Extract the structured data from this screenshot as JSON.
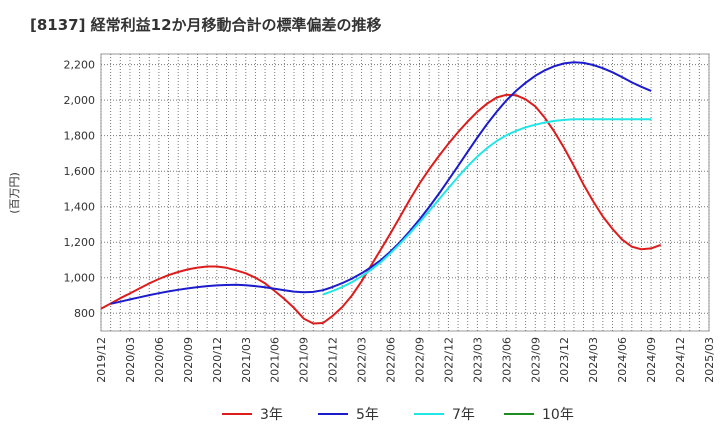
{
  "chart_data": {
    "type": "line",
    "title": "[8137]  経常利益12か月移動合計の標準偏差の推移",
    "ylabel": "(百万円)",
    "xlabel": "",
    "ylim": [
      700,
      2260
    ],
    "yticks": [
      800,
      1000,
      1200,
      1400,
      1600,
      1800,
      2000,
      2200
    ],
    "ytick_labels": [
      "800",
      "1,000",
      "1,200",
      "1,400",
      "1,600",
      "1,800",
      "2,000",
      "2,200"
    ],
    "xlim": [
      "2019-12",
      "2025-03"
    ],
    "xticks": [
      "2019/12",
      "2020/03",
      "2020/06",
      "2020/09",
      "2020/12",
      "2021/03",
      "2021/06",
      "2021/09",
      "2021/12",
      "2022/03",
      "2022/06",
      "2022/09",
      "2022/12",
      "2023/03",
      "2023/06",
      "2023/09",
      "2023/12",
      "2024/03",
      "2024/06",
      "2024/09",
      "2024/12",
      "2025/03"
    ],
    "grid": true,
    "legend_position": "bottom",
    "series": [
      {
        "name": "3年",
        "color": "#dd1c1c",
        "points": [
          [
            "2019-12",
            825
          ],
          [
            "2020-01",
            855
          ],
          [
            "2020-02",
            885
          ],
          [
            "2020-03",
            912
          ],
          [
            "2020-04",
            940
          ],
          [
            "2020-05",
            968
          ],
          [
            "2020-06",
            993
          ],
          [
            "2020-07",
            1015
          ],
          [
            "2020-08",
            1032
          ],
          [
            "2020-09",
            1047
          ],
          [
            "2020-10",
            1057
          ],
          [
            "2020-11",
            1063
          ],
          [
            "2020-12",
            1063
          ],
          [
            "2021-01",
            1056
          ],
          [
            "2021-02",
            1042
          ],
          [
            "2021-03",
            1025
          ],
          [
            "2021-04",
            1000
          ],
          [
            "2021-05",
            968
          ],
          [
            "2021-06",
            925
          ],
          [
            "2021-07",
            880
          ],
          [
            "2021-08",
            830
          ],
          [
            "2021-09",
            770
          ],
          [
            "2021-10",
            742
          ],
          [
            "2021-11",
            745
          ],
          [
            "2021-12",
            785
          ],
          [
            "2022-01",
            835
          ],
          [
            "2022-02",
            900
          ],
          [
            "2022-03",
            980
          ],
          [
            "2022-04",
            1070
          ],
          [
            "2022-05",
            1160
          ],
          [
            "2022-06",
            1250
          ],
          [
            "2022-07",
            1345
          ],
          [
            "2022-08",
            1440
          ],
          [
            "2022-09",
            1530
          ],
          [
            "2022-10",
            1610
          ],
          [
            "2022-11",
            1685
          ],
          [
            "2022-12",
            1755
          ],
          [
            "2023-01",
            1820
          ],
          [
            "2023-02",
            1880
          ],
          [
            "2023-03",
            1935
          ],
          [
            "2023-04",
            1980
          ],
          [
            "2023-05",
            2015
          ],
          [
            "2023-06",
            2030
          ],
          [
            "2023-07",
            2028
          ],
          [
            "2023-08",
            2005
          ],
          [
            "2023-09",
            1965
          ],
          [
            "2023-10",
            1900
          ],
          [
            "2023-11",
            1820
          ],
          [
            "2023-12",
            1730
          ],
          [
            "2024-01",
            1630
          ],
          [
            "2024-02",
            1525
          ],
          [
            "2024-03",
            1430
          ],
          [
            "2024-04",
            1345
          ],
          [
            "2024-05",
            1275
          ],
          [
            "2024-06",
            1215
          ],
          [
            "2024-07",
            1175
          ],
          [
            "2024-08",
            1160
          ],
          [
            "2024-09",
            1165
          ],
          [
            "2024-10",
            1185
          ]
        ]
      },
      {
        "name": "5年",
        "color": "#1c1ccc",
        "points": [
          [
            "2020-01",
            853
          ],
          [
            "2020-02",
            865
          ],
          [
            "2020-03",
            878
          ],
          [
            "2020-04",
            890
          ],
          [
            "2020-05",
            902
          ],
          [
            "2020-06",
            913
          ],
          [
            "2020-07",
            923
          ],
          [
            "2020-08",
            932
          ],
          [
            "2020-09",
            940
          ],
          [
            "2020-10",
            947
          ],
          [
            "2020-11",
            953
          ],
          [
            "2020-12",
            957
          ],
          [
            "2021-01",
            959
          ],
          [
            "2021-02",
            960
          ],
          [
            "2021-03",
            958
          ],
          [
            "2021-04",
            953
          ],
          [
            "2021-05",
            946
          ],
          [
            "2021-06",
            938
          ],
          [
            "2021-07",
            930
          ],
          [
            "2021-08",
            922
          ],
          [
            "2021-09",
            918
          ],
          [
            "2021-10",
            920
          ],
          [
            "2021-11",
            930
          ],
          [
            "2021-12",
            948
          ],
          [
            "2022-01",
            970
          ],
          [
            "2022-02",
            995
          ],
          [
            "2022-03",
            1025
          ],
          [
            "2022-04",
            1060
          ],
          [
            "2022-05",
            1100
          ],
          [
            "2022-06",
            1148
          ],
          [
            "2022-07",
            1202
          ],
          [
            "2022-08",
            1262
          ],
          [
            "2022-09",
            1328
          ],
          [
            "2022-10",
            1398
          ],
          [
            "2022-11",
            1472
          ],
          [
            "2022-12",
            1550
          ],
          [
            "2023-01",
            1630
          ],
          [
            "2023-02",
            1710
          ],
          [
            "2023-03",
            1790
          ],
          [
            "2023-04",
            1865
          ],
          [
            "2023-05",
            1935
          ],
          [
            "2023-06",
            1998
          ],
          [
            "2023-07",
            2052
          ],
          [
            "2023-08",
            2098
          ],
          [
            "2023-09",
            2137
          ],
          [
            "2023-10",
            2168
          ],
          [
            "2023-11",
            2192
          ],
          [
            "2023-12",
            2207
          ],
          [
            "2024-01",
            2213
          ],
          [
            "2024-02",
            2210
          ],
          [
            "2024-03",
            2198
          ],
          [
            "2024-04",
            2180
          ],
          [
            "2024-05",
            2157
          ],
          [
            "2024-06",
            2130
          ],
          [
            "2024-07",
            2100
          ],
          [
            "2024-08",
            2075
          ],
          [
            "2024-09",
            2052
          ]
        ]
      },
      {
        "name": "7年",
        "color": "#22e6e6",
        "points": [
          [
            "2021-11",
            905
          ],
          [
            "2021-12",
            925
          ],
          [
            "2022-01",
            948
          ],
          [
            "2022-02",
            975
          ],
          [
            "2022-03",
            1008
          ],
          [
            "2022-04",
            1045
          ],
          [
            "2022-05",
            1088
          ],
          [
            "2022-06",
            1138
          ],
          [
            "2022-07",
            1192
          ],
          [
            "2022-08",
            1250
          ],
          [
            "2022-09",
            1312
          ],
          [
            "2022-10",
            1375
          ],
          [
            "2022-11",
            1440
          ],
          [
            "2022-12",
            1505
          ],
          [
            "2023-01",
            1568
          ],
          [
            "2023-02",
            1628
          ],
          [
            "2023-03",
            1683
          ],
          [
            "2023-04",
            1730
          ],
          [
            "2023-05",
            1770
          ],
          [
            "2023-06",
            1802
          ],
          [
            "2023-07",
            1827
          ],
          [
            "2023-08",
            1847
          ],
          [
            "2023-09",
            1862
          ],
          [
            "2023-10",
            1874
          ],
          [
            "2023-11",
            1883
          ],
          [
            "2023-12",
            1889
          ],
          [
            "2024-01",
            1892
          ],
          [
            "2024-02",
            1893
          ],
          [
            "2024-03",
            1893
          ],
          [
            "2024-04",
            1893
          ],
          [
            "2024-05",
            1893
          ],
          [
            "2024-06",
            1893
          ],
          [
            "2024-07",
            1893
          ],
          [
            "2024-08",
            1893
          ],
          [
            "2024-09",
            1893
          ]
        ]
      },
      {
        "name": "10年",
        "color": "#1e8c1e",
        "points": []
      }
    ]
  }
}
